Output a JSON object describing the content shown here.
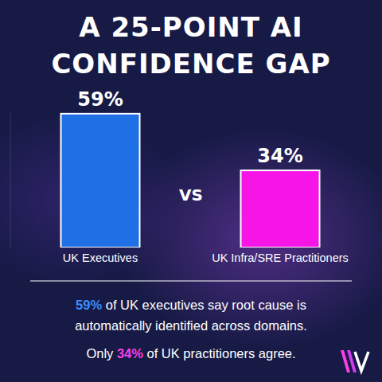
{
  "chart_data": {
    "type": "bar",
    "title": [
      "A 25-POINT AI",
      "CONFIDENCE GAP"
    ],
    "categories": [
      "UK Executives",
      "UK Infra/SRE Practitioners"
    ],
    "values": [
      59,
      34
    ],
    "value_labels": [
      "59%",
      "34%"
    ],
    "colors": [
      "#1f6fe5",
      "#f614e6"
    ],
    "ylim": [
      0,
      60
    ],
    "data_labels": true,
    "tick_labels": "x",
    "annotations": [
      "VS"
    ],
    "footnote": [
      [
        {
          "text": "59%",
          "color": "#3d8cff"
        },
        {
          "text": " of UK executives say root cause is"
        }
      ],
      [
        {
          "text": "automatically identified across domains."
        }
      ],
      [
        {
          "text": "Only "
        },
        {
          "text": "34%",
          "color": "#ff3ee8"
        },
        {
          "text": " of UK practitioners agree."
        }
      ]
    ]
  }
}
